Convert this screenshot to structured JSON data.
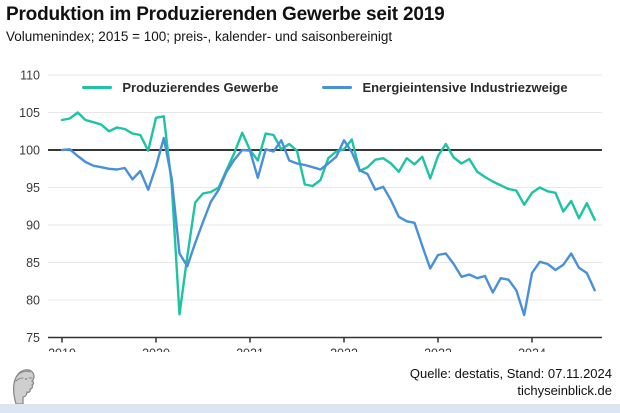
{
  "header": {
    "title": "Produktion im Produzierenden Gewerbe seit 2019",
    "subtitle": "Volumenindex; 2015 = 100; preis-, kalender- und saisonbereinigt"
  },
  "legend": [
    {
      "label": "Produzierendes Gewerbe",
      "color": "#1ec3a3"
    },
    {
      "label": "Energieintensive Industriezweige",
      "color": "#4a90d8"
    }
  ],
  "chart_data": {
    "type": "line",
    "title": "Produktion im Produzierenden Gewerbe seit 2019",
    "subtitle": "Volumenindex; 2015 = 100; preis-, kalender- und saisonbereinigt",
    "frequency": "monthly",
    "x_start": "2019-01",
    "x_end": "2024-09",
    "x_ticks": [
      "2019",
      "2020",
      "2021",
      "2022",
      "2023",
      "2024"
    ],
    "y_ticks": [
      75,
      80,
      85,
      90,
      95,
      100,
      105,
      110
    ],
    "ylim": [
      75,
      110
    ],
    "baseline": 100,
    "grid": true,
    "legend_position": "top",
    "series": [
      {
        "name": "Produzierendes Gewerbe",
        "color": "#1ec3a3",
        "values": [
          104.0,
          104.2,
          105.0,
          104.0,
          103.7,
          103.4,
          102.5,
          103.0,
          102.8,
          102.2,
          102.0,
          99.9,
          104.3,
          104.5,
          95.4,
          78.1,
          85.8,
          93.0,
          94.2,
          94.4,
          95.0,
          97.3,
          99.6,
          102.3,
          100.0,
          98.6,
          102.2,
          102.0,
          100.1,
          100.8,
          99.9,
          95.4,
          95.2,
          96.0,
          98.9,
          99.8,
          100.1,
          101.4,
          97.2,
          97.7,
          98.7,
          98.9,
          98.2,
          97.1,
          98.9,
          98.1,
          99.1,
          96.2,
          99.2,
          100.8,
          99.0,
          98.2,
          98.8,
          97.1,
          96.4,
          95.8,
          95.3,
          94.8,
          94.6,
          92.7,
          94.3,
          95.0,
          94.5,
          94.3,
          91.8,
          93.2,
          90.9,
          92.9,
          90.7
        ]
      },
      {
        "name": "Energieintensive Industriezweige",
        "color": "#4a90d8",
        "values": [
          100.0,
          100.1,
          99.2,
          98.4,
          97.9,
          97.7,
          97.5,
          97.4,
          97.6,
          96.1,
          97.2,
          94.7,
          97.8,
          101.6,
          96.2,
          86.2,
          84.5,
          87.6,
          90.4,
          93.1,
          94.7,
          97.1,
          98.7,
          100.0,
          99.9,
          96.3,
          100.1,
          99.8,
          101.3,
          98.6,
          98.2,
          98.0,
          97.7,
          97.4,
          98.2,
          99.1,
          101.3,
          99.7,
          97.3,
          96.8,
          94.7,
          95.1,
          93.3,
          91.1,
          90.5,
          90.3,
          87.2,
          84.2,
          86.0,
          86.2,
          84.8,
          83.1,
          83.4,
          82.9,
          83.2,
          81.0,
          82.9,
          82.7,
          81.3,
          78.0,
          83.6,
          85.1,
          84.8,
          84.0,
          84.7,
          86.2,
          84.3,
          83.6,
          81.3
        ]
      }
    ]
  },
  "footer": {
    "source": "Quelle: destatis, Stand: 07.11.2024",
    "site": "tichyseinblick.de"
  },
  "colors": {
    "baseline_line": "#1a1a1a",
    "grid_line": "#e7e7e7",
    "axis_line": "#333333",
    "bottom_bar": "#dce5f0",
    "logo_gray": "#8a8a8a"
  }
}
